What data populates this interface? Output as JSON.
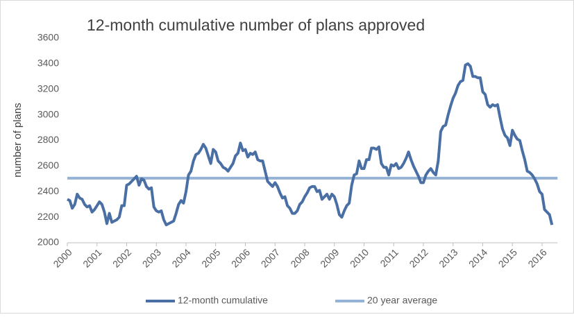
{
  "chart_data": {
    "type": "line",
    "title": "12-month cumulative number of plans approved",
    "y_label": "number of plans",
    "categories": [
      "2000",
      null,
      null,
      null,
      null,
      null,
      null,
      null,
      null,
      null,
      null,
      null,
      "2001",
      null,
      null,
      null,
      null,
      null,
      null,
      null,
      null,
      null,
      null,
      null,
      "2002",
      null,
      null,
      null,
      null,
      null,
      null,
      null,
      null,
      null,
      null,
      null,
      "2003",
      null,
      null,
      null,
      null,
      null,
      null,
      null,
      null,
      null,
      null,
      null,
      "2004",
      null,
      null,
      null,
      null,
      null,
      null,
      null,
      null,
      null,
      null,
      null,
      "2005",
      null,
      null,
      null,
      null,
      null,
      null,
      null,
      null,
      null,
      null,
      null,
      "2006",
      null,
      null,
      null,
      null,
      null,
      null,
      null,
      null,
      null,
      null,
      null,
      "2007",
      null,
      null,
      null,
      null,
      null,
      null,
      null,
      null,
      null,
      null,
      null,
      "2008",
      null,
      null,
      null,
      null,
      null,
      null,
      null,
      null,
      null,
      null,
      null,
      "2009",
      null,
      null,
      null,
      null,
      null,
      null,
      null,
      null,
      null,
      null,
      null,
      "2010",
      null,
      null,
      null,
      null,
      null,
      null,
      null,
      null,
      null,
      null,
      null,
      "2011",
      null,
      null,
      null,
      null,
      null,
      null,
      null,
      null,
      null,
      null,
      null,
      "2012",
      null,
      null,
      null,
      null,
      null,
      null,
      null,
      null,
      null,
      null,
      null,
      "2013",
      null,
      null,
      null,
      null,
      null,
      null,
      null,
      null,
      null,
      null,
      null,
      "2014",
      null,
      null,
      null,
      null,
      null,
      null,
      null,
      null,
      null,
      null,
      null,
      "2015",
      null,
      null,
      null,
      null,
      null,
      null,
      null,
      null,
      null,
      null,
      null,
      "2016",
      null,
      null,
      null,
      null
    ],
    "series": [
      {
        "name": "12-month cumulative",
        "color": "#4a6fa5",
        "values": [
          2340,
          2330,
          2270,
          2300,
          2380,
          2350,
          2340,
          2300,
          2280,
          2290,
          2240,
          2260,
          2290,
          2320,
          2300,
          2240,
          2150,
          2230,
          2160,
          2170,
          2180,
          2200,
          2290,
          2290,
          2450,
          2460,
          2480,
          2500,
          2520,
          2450,
          2500,
          2490,
          2440,
          2420,
          2430,
          2280,
          2250,
          2240,
          2250,
          2180,
          2140,
          2150,
          2160,
          2170,
          2230,
          2300,
          2330,
          2310,
          2400,
          2530,
          2560,
          2640,
          2690,
          2700,
          2730,
          2770,
          2740,
          2680,
          2620,
          2730,
          2710,
          2640,
          2620,
          2590,
          2580,
          2560,
          2590,
          2620,
          2680,
          2700,
          2780,
          2720,
          2730,
          2670,
          2700,
          2690,
          2710,
          2650,
          2640,
          2640,
          2560,
          2480,
          2460,
          2440,
          2470,
          2440,
          2390,
          2350,
          2360,
          2290,
          2270,
          2230,
          2230,
          2250,
          2300,
          2320,
          2360,
          2390,
          2430,
          2440,
          2440,
          2400,
          2410,
          2340,
          2360,
          2380,
          2340,
          2380,
          2360,
          2300,
          2220,
          2200,
          2250,
          2290,
          2310,
          2450,
          2530,
          2540,
          2640,
          2580,
          2580,
          2650,
          2650,
          2740,
          2740,
          2730,
          2750,
          2620,
          2590,
          2590,
          2530,
          2610,
          2600,
          2620,
          2580,
          2590,
          2620,
          2660,
          2710,
          2650,
          2600,
          2560,
          2520,
          2470,
          2470,
          2530,
          2560,
          2580,
          2550,
          2530,
          2640,
          2870,
          2910,
          2920,
          3000,
          3070,
          3130,
          3170,
          3230,
          3260,
          3270,
          3390,
          3400,
          3380,
          3300,
          3300,
          3290,
          3290,
          3180,
          3160,
          3080,
          3060,
          3080,
          3070,
          3080,
          2980,
          2890,
          2840,
          2820,
          2760,
          2880,
          2840,
          2810,
          2800,
          2720,
          2650,
          2560,
          2550,
          2530,
          2500,
          2460,
          2400,
          2380,
          2260,
          2240,
          2220,
          2140
        ]
      }
    ],
    "reference_line": {
      "name": "20 year average",
      "color": "#95b3d7",
      "value": 2505
    },
    "ylim": [
      2000,
      3600
    ],
    "yticks": [
      2000,
      2200,
      2400,
      2600,
      2800,
      3000,
      3200,
      3400,
      3600
    ]
  }
}
